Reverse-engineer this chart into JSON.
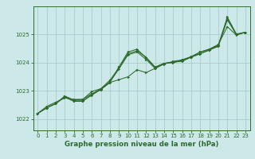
{
  "title": "Graphe pression niveau de la mer (hPa)",
  "background_color": "#cce8e8",
  "grid_color": "#aacccc",
  "line_color": "#2d6b2d",
  "xlim": [
    -0.5,
    23.5
  ],
  "ylim": [
    1021.6,
    1026.0
  ],
  "yticks": [
    1022,
    1023,
    1024,
    1025
  ],
  "xticks": [
    0,
    1,
    2,
    3,
    4,
    5,
    6,
    7,
    8,
    9,
    10,
    11,
    12,
    13,
    14,
    15,
    16,
    17,
    18,
    19,
    20,
    21,
    22,
    23
  ],
  "tick_fontsize": 5.0,
  "label_fontsize": 6.2,
  "lines": [
    {
      "x": [
        0,
        1,
        2,
        3,
        4,
        5,
        6,
        7,
        8,
        9,
        10,
        11,
        12,
        13,
        14,
        15,
        16,
        17,
        18,
        19,
        20,
        21,
        22,
        23
      ],
      "y": [
        1022.2,
        1022.45,
        1022.6,
        1022.75,
        1022.7,
        1022.7,
        1022.9,
        1023.05,
        1023.3,
        1023.4,
        1023.5,
        1023.75,
        1023.65,
        1023.8,
        1023.95,
        1024.05,
        1024.1,
        1024.22,
        1024.38,
        1024.48,
        1024.65,
        1025.28,
        1024.98,
        1025.08
      ]
    },
    {
      "x": [
        0,
        1,
        2,
        3,
        4,
        5,
        6,
        7,
        8,
        9,
        10,
        11,
        12,
        13,
        14,
        15,
        16,
        17,
        18,
        19,
        20,
        21,
        22,
        23
      ],
      "y": [
        1022.2,
        1022.4,
        1022.55,
        1022.8,
        1022.65,
        1022.65,
        1022.85,
        1023.05,
        1023.3,
        1023.85,
        1024.38,
        1024.48,
        1024.18,
        1023.82,
        1023.98,
        1024.02,
        1024.08,
        1024.2,
        1024.32,
        1024.45,
        1024.6,
        1025.62,
        1025.02,
        1025.08
      ]
    },
    {
      "x": [
        0,
        1,
        2,
        3,
        4,
        5,
        6,
        7,
        8,
        9,
        10,
        11,
        12,
        13,
        14,
        15,
        16,
        17,
        18,
        19,
        20,
        21,
        22,
        23
      ],
      "y": [
        1022.2,
        1022.4,
        1022.55,
        1022.82,
        1022.68,
        1022.7,
        1022.98,
        1023.08,
        1023.38,
        1023.82,
        1024.32,
        1024.42,
        1024.2,
        1023.85,
        1023.98,
        1024.0,
        1024.1,
        1024.2,
        1024.38,
        1024.48,
        1024.62,
        1025.58,
        1025.0,
        1025.08
      ]
    },
    {
      "x": [
        0,
        1,
        2,
        3,
        4,
        5,
        6,
        7,
        8,
        9,
        10,
        11,
        12,
        13,
        14,
        15,
        16,
        17,
        18,
        19,
        20,
        21,
        22,
        23
      ],
      "y": [
        1022.2,
        1022.4,
        1022.55,
        1022.78,
        1022.63,
        1022.63,
        1022.88,
        1023.08,
        1023.32,
        1023.78,
        1024.28,
        1024.38,
        1024.12,
        1023.8,
        1023.98,
        1024.02,
        1024.05,
        1024.2,
        1024.32,
        1024.45,
        1024.58,
        1025.52,
        1025.0,
        1025.08
      ]
    }
  ]
}
